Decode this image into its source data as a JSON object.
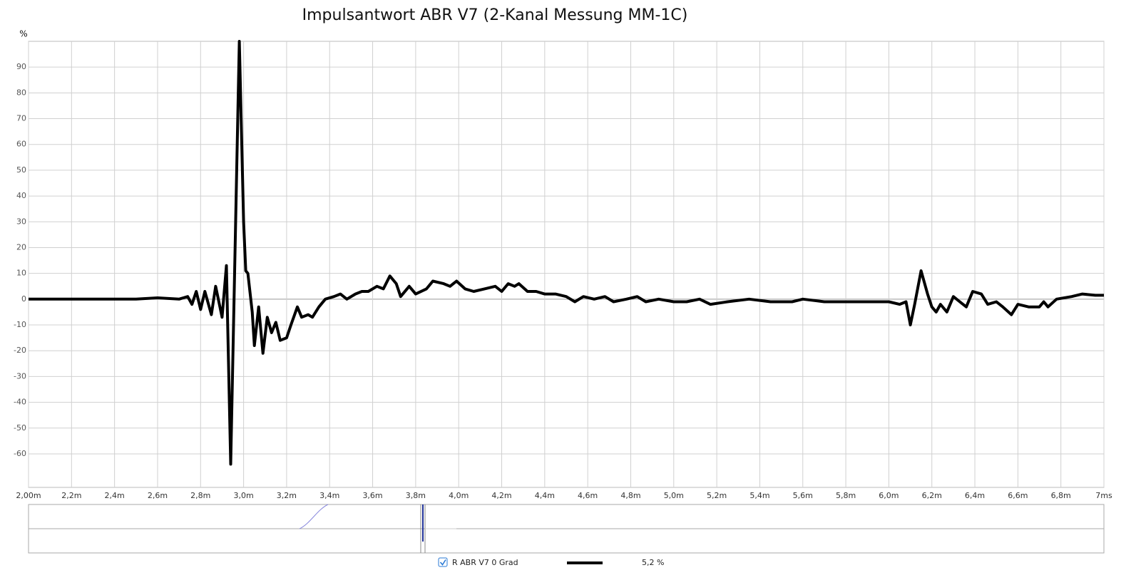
{
  "chart_data": {
    "type": "line",
    "title": "Impulsantwort ABR V7 (2-Kanal Messung MM-1C)",
    "ylabel": "%",
    "xlim": [
      2.0,
      7.0
    ],
    "ylim": [
      -73,
      100
    ],
    "grid": true,
    "xticks": [
      {
        "value": 2.0,
        "label": "2,00m"
      },
      {
        "value": 2.2,
        "label": "2,2m"
      },
      {
        "value": 2.4,
        "label": "2,4m"
      },
      {
        "value": 2.6,
        "label": "2,6m"
      },
      {
        "value": 2.8,
        "label": "2,8m"
      },
      {
        "value": 3.0,
        "label": "3,0m"
      },
      {
        "value": 3.2,
        "label": "3,2m"
      },
      {
        "value": 3.4,
        "label": "3,4m"
      },
      {
        "value": 3.6,
        "label": "3,6m"
      },
      {
        "value": 3.8,
        "label": "3,8m"
      },
      {
        "value": 4.0,
        "label": "4,0m"
      },
      {
        "value": 4.2,
        "label": "4,2m"
      },
      {
        "value": 4.4,
        "label": "4,4m"
      },
      {
        "value": 4.6,
        "label": "4,6m"
      },
      {
        "value": 4.8,
        "label": "4,8m"
      },
      {
        "value": 5.0,
        "label": "5,0m"
      },
      {
        "value": 5.2,
        "label": "5,2m"
      },
      {
        "value": 5.4,
        "label": "5,4m"
      },
      {
        "value": 5.6,
        "label": "5,6m"
      },
      {
        "value": 5.8,
        "label": "5,8m"
      },
      {
        "value": 6.0,
        "label": "6,0m"
      },
      {
        "value": 6.2,
        "label": "6,2m"
      },
      {
        "value": 6.4,
        "label": "6,4m"
      },
      {
        "value": 6.6,
        "label": "6,6m"
      },
      {
        "value": 6.8,
        "label": "6,8m"
      },
      {
        "value": 7.0,
        "label": "7ms"
      }
    ],
    "yticks": [
      -60,
      -50,
      -40,
      -30,
      -20,
      -10,
      0,
      10,
      20,
      30,
      40,
      50,
      60,
      70,
      80,
      90
    ],
    "x": [
      2.0,
      2.3,
      2.5,
      2.6,
      2.7,
      2.74,
      2.76,
      2.78,
      2.8,
      2.82,
      2.85,
      2.87,
      2.9,
      2.92,
      2.94,
      2.98,
      3.0,
      3.01,
      3.02,
      3.04,
      3.05,
      3.07,
      3.09,
      3.11,
      3.13,
      3.15,
      3.17,
      3.2,
      3.22,
      3.25,
      3.27,
      3.3,
      3.32,
      3.35,
      3.38,
      3.42,
      3.45,
      3.48,
      3.52,
      3.55,
      3.58,
      3.62,
      3.65,
      3.68,
      3.71,
      3.73,
      3.77,
      3.8,
      3.85,
      3.88,
      3.93,
      3.96,
      3.99,
      4.03,
      4.07,
      4.12,
      4.17,
      4.2,
      4.23,
      4.26,
      4.28,
      4.32,
      4.36,
      4.4,
      4.45,
      4.5,
      4.54,
      4.58,
      4.63,
      4.68,
      4.72,
      4.78,
      4.83,
      4.87,
      4.93,
      5.0,
      5.06,
      5.12,
      5.17,
      5.25,
      5.35,
      5.45,
      5.55,
      5.6,
      5.7,
      5.8,
      5.9,
      6.0,
      6.05,
      6.08,
      6.1,
      6.12,
      6.15,
      6.18,
      6.2,
      6.22,
      6.24,
      6.27,
      6.3,
      6.33,
      6.36,
      6.39,
      6.43,
      6.46,
      6.5,
      6.53,
      6.57,
      6.6,
      6.65,
      6.7,
      6.72,
      6.74,
      6.78,
      6.85,
      6.9,
      6.96,
      7.0
    ],
    "series": [
      {
        "name": "R ABR V7 0 Grad",
        "scale_label": "5,2 %",
        "color": "#000000",
        "values": [
          0,
          0,
          0,
          0.5,
          0,
          1,
          -2,
          3,
          -4,
          3,
          -6,
          5,
          -7,
          13,
          -64,
          100,
          30,
          11,
          10,
          -5,
          -18,
          -3,
          -21,
          -7,
          -13,
          -9,
          -16,
          -15,
          -10,
          -3,
          -7,
          -6,
          -7,
          -3,
          0,
          1,
          2,
          0,
          2,
          3,
          3,
          5,
          4,
          9,
          6,
          1,
          5,
          2,
          4,
          7,
          6,
          5,
          7,
          4,
          3,
          4,
          5,
          3,
          6,
          5,
          6,
          3,
          3,
          2,
          2,
          1,
          -1,
          1,
          0,
          1,
          -1,
          0,
          1,
          -1,
          0,
          -1,
          -1,
          0,
          -2,
          -1,
          0,
          -1,
          -1,
          0,
          -1,
          -1,
          -1,
          -1,
          -2,
          -1,
          -10,
          -2,
          11,
          2,
          -3,
          -5,
          -2,
          -5,
          1,
          -1,
          -3,
          3,
          2,
          -2,
          -1,
          -3,
          -6,
          -2,
          -3,
          -3,
          -1,
          -3,
          0,
          1,
          2,
          1.5,
          1.5
        ]
      }
    ]
  }
}
